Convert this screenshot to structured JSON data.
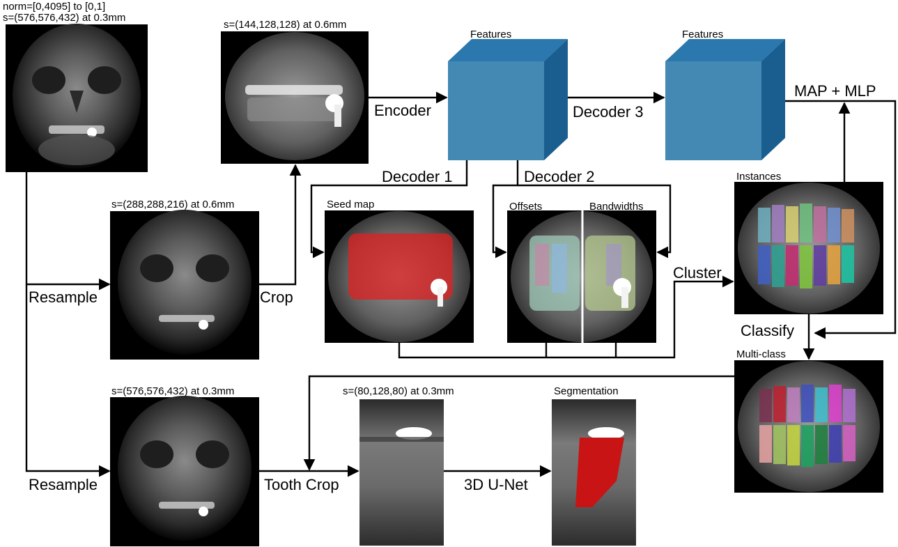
{
  "labels": {
    "norm": "norm=[0,4095] to [0,1]",
    "scan_full_top": "s=(576,576,432) at 0.3mm",
    "scan_half": "s=(288,288,216) at 0.6mm",
    "scan_crop": "s=(144,128,128) at 0.6mm",
    "scan_full_bottom": "s=(576,576,432) at 0.3mm",
    "scan_tooth": "s=(80,128,80) at 0.3mm",
    "features_1": "Features",
    "features_2": "Features",
    "seed_map": "Seed map",
    "offsets": "Offsets",
    "bandwidths": "Bandwidths",
    "instances": "Instances",
    "multi_class": "Multi-class",
    "segmentation": "Segmentation"
  },
  "edges": {
    "resample_top": "Resample",
    "crop": "Crop",
    "encoder": "Encoder",
    "decoder1": "Decoder 1",
    "decoder2": "Decoder 2",
    "decoder3": "Decoder 3",
    "map_mlp": "MAP + MLP",
    "cluster": "Cluster",
    "classify": "Classify",
    "resample_bottom": "Resample",
    "tooth_crop": "Tooth Crop",
    "unet": "3D U-Net"
  },
  "colors": {
    "cube_front": "#4488b4",
    "cube_top": "#2a78ad",
    "cube_side": "#1a5e8f",
    "seed_overlay": "#e02020",
    "segmentation_overlay": "#c81414"
  }
}
